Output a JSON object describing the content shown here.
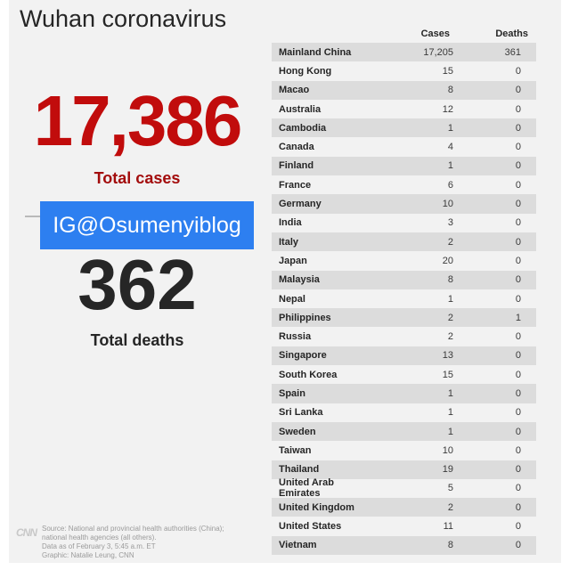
{
  "title": "Wuhan coronavirus",
  "totals": {
    "cases_value": "17,386",
    "cases_label": "Total cases",
    "deaths_value": "362",
    "deaths_label": "Total deaths"
  },
  "watermark": "IG@Osumenyiblog",
  "source": {
    "logo": "CNN",
    "lines": [
      "Source: National and provincial health authorities (China);",
      "national health agencies (all others).",
      "Data as of February 3, 5:45 a.m. ET",
      "Graphic: Natalie Leung, CNN"
    ]
  },
  "colors": {
    "cases_red": "#c10c0c",
    "watermark_blue": "#2d7ff0",
    "row_stripe": "#dcdcdc"
  },
  "chart_data": {
    "type": "table",
    "columns": [
      "",
      "Cases",
      "Deaths"
    ],
    "rows": [
      {
        "country": "Mainland China",
        "cases": "17,205",
        "deaths": "361"
      },
      {
        "country": "Hong Kong",
        "cases": "15",
        "deaths": "0"
      },
      {
        "country": "Macao",
        "cases": "8",
        "deaths": "0"
      },
      {
        "country": "Australia",
        "cases": "12",
        "deaths": "0"
      },
      {
        "country": "Cambodia",
        "cases": "1",
        "deaths": "0"
      },
      {
        "country": "Canada",
        "cases": "4",
        "deaths": "0"
      },
      {
        "country": "Finland",
        "cases": "1",
        "deaths": "0"
      },
      {
        "country": "France",
        "cases": "6",
        "deaths": "0"
      },
      {
        "country": "Germany",
        "cases": "10",
        "deaths": "0"
      },
      {
        "country": "India",
        "cases": "3",
        "deaths": "0"
      },
      {
        "country": "Italy",
        "cases": "2",
        "deaths": "0"
      },
      {
        "country": "Japan",
        "cases": "20",
        "deaths": "0"
      },
      {
        "country": "Malaysia",
        "cases": "8",
        "deaths": "0"
      },
      {
        "country": "Nepal",
        "cases": "1",
        "deaths": "0"
      },
      {
        "country": "Philippines",
        "cases": "2",
        "deaths": "1"
      },
      {
        "country": "Russia",
        "cases": "2",
        "deaths": "0"
      },
      {
        "country": "Singapore",
        "cases": "13",
        "deaths": "0"
      },
      {
        "country": "South Korea",
        "cases": "15",
        "deaths": "0"
      },
      {
        "country": "Spain",
        "cases": "1",
        "deaths": "0"
      },
      {
        "country": "Sri Lanka",
        "cases": "1",
        "deaths": "0"
      },
      {
        "country": "Sweden",
        "cases": "1",
        "deaths": "0"
      },
      {
        "country": "Taiwan",
        "cases": "10",
        "deaths": "0"
      },
      {
        "country": "Thailand",
        "cases": "19",
        "deaths": "0"
      },
      {
        "country": "United Arab Emirates",
        "cases": "5",
        "deaths": "0"
      },
      {
        "country": "United Kingdom",
        "cases": "2",
        "deaths": "0"
      },
      {
        "country": "United States",
        "cases": "11",
        "deaths": "0"
      },
      {
        "country": "Vietnam",
        "cases": "8",
        "deaths": "0"
      }
    ]
  }
}
